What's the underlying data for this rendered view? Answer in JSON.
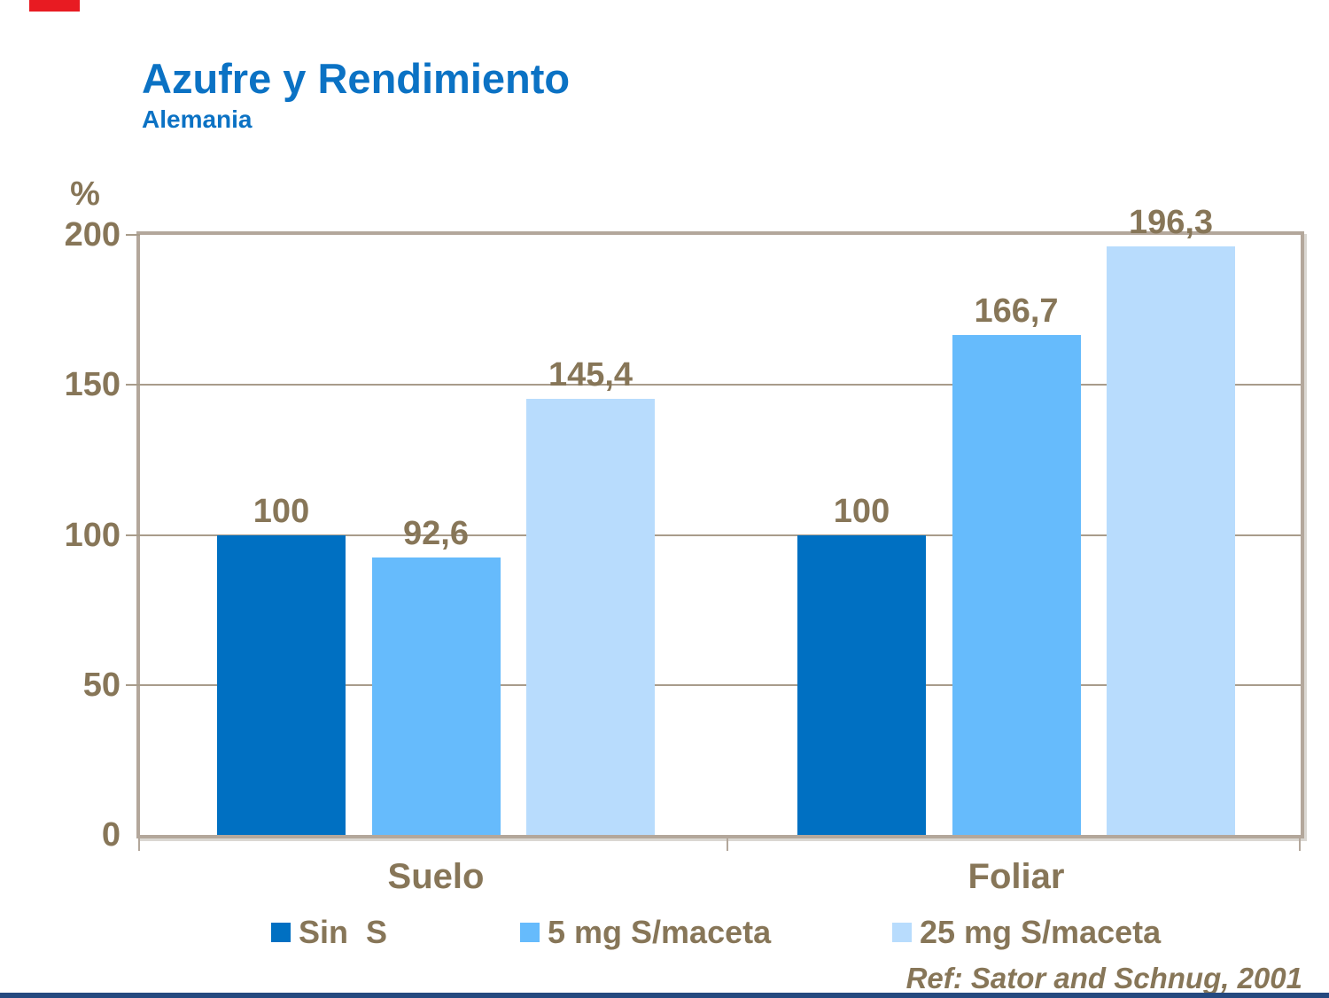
{
  "page": {
    "title": "Azufre y Rendimiento",
    "subtitle": "Alemania",
    "reference": "Ref: Sator and Schnug, 2001"
  },
  "accents": {
    "title_color": "#0B72C4",
    "top_left_bar_color": "#E81B22",
    "bottom_line_color": "#25497F",
    "axis_color": "#B3A79B",
    "gridline_color": "#A89C8B",
    "text_color": "#877658"
  },
  "chart_data": {
    "type": "bar",
    "title": "Azufre y Rendimiento",
    "subtitle": "Alemania",
    "xlabel": "",
    "ylabel": "%",
    "ylim": [
      0,
      200
    ],
    "yticks": [
      0,
      50,
      100,
      150,
      200
    ],
    "grid": true,
    "legend_position": "bottom",
    "categories": [
      "Suelo",
      "Foliar"
    ],
    "series": [
      {
        "name": "Sin  S",
        "color": "#0070C2",
        "values": [
          100,
          100
        ],
        "labels": [
          "100",
          "100"
        ]
      },
      {
        "name": "5 mg S/maceta",
        "color": "#66BBFC",
        "values": [
          92.6,
          166.7
        ],
        "labels": [
          "92,6",
          "166,7"
        ]
      },
      {
        "name": "25 mg S/maceta",
        "color": "#B8DCFD",
        "values": [
          145.4,
          196.3
        ],
        "labels": [
          "145,4",
          "196,3"
        ]
      }
    ],
    "reference": "Ref: Sator and Schnug, 2001"
  }
}
